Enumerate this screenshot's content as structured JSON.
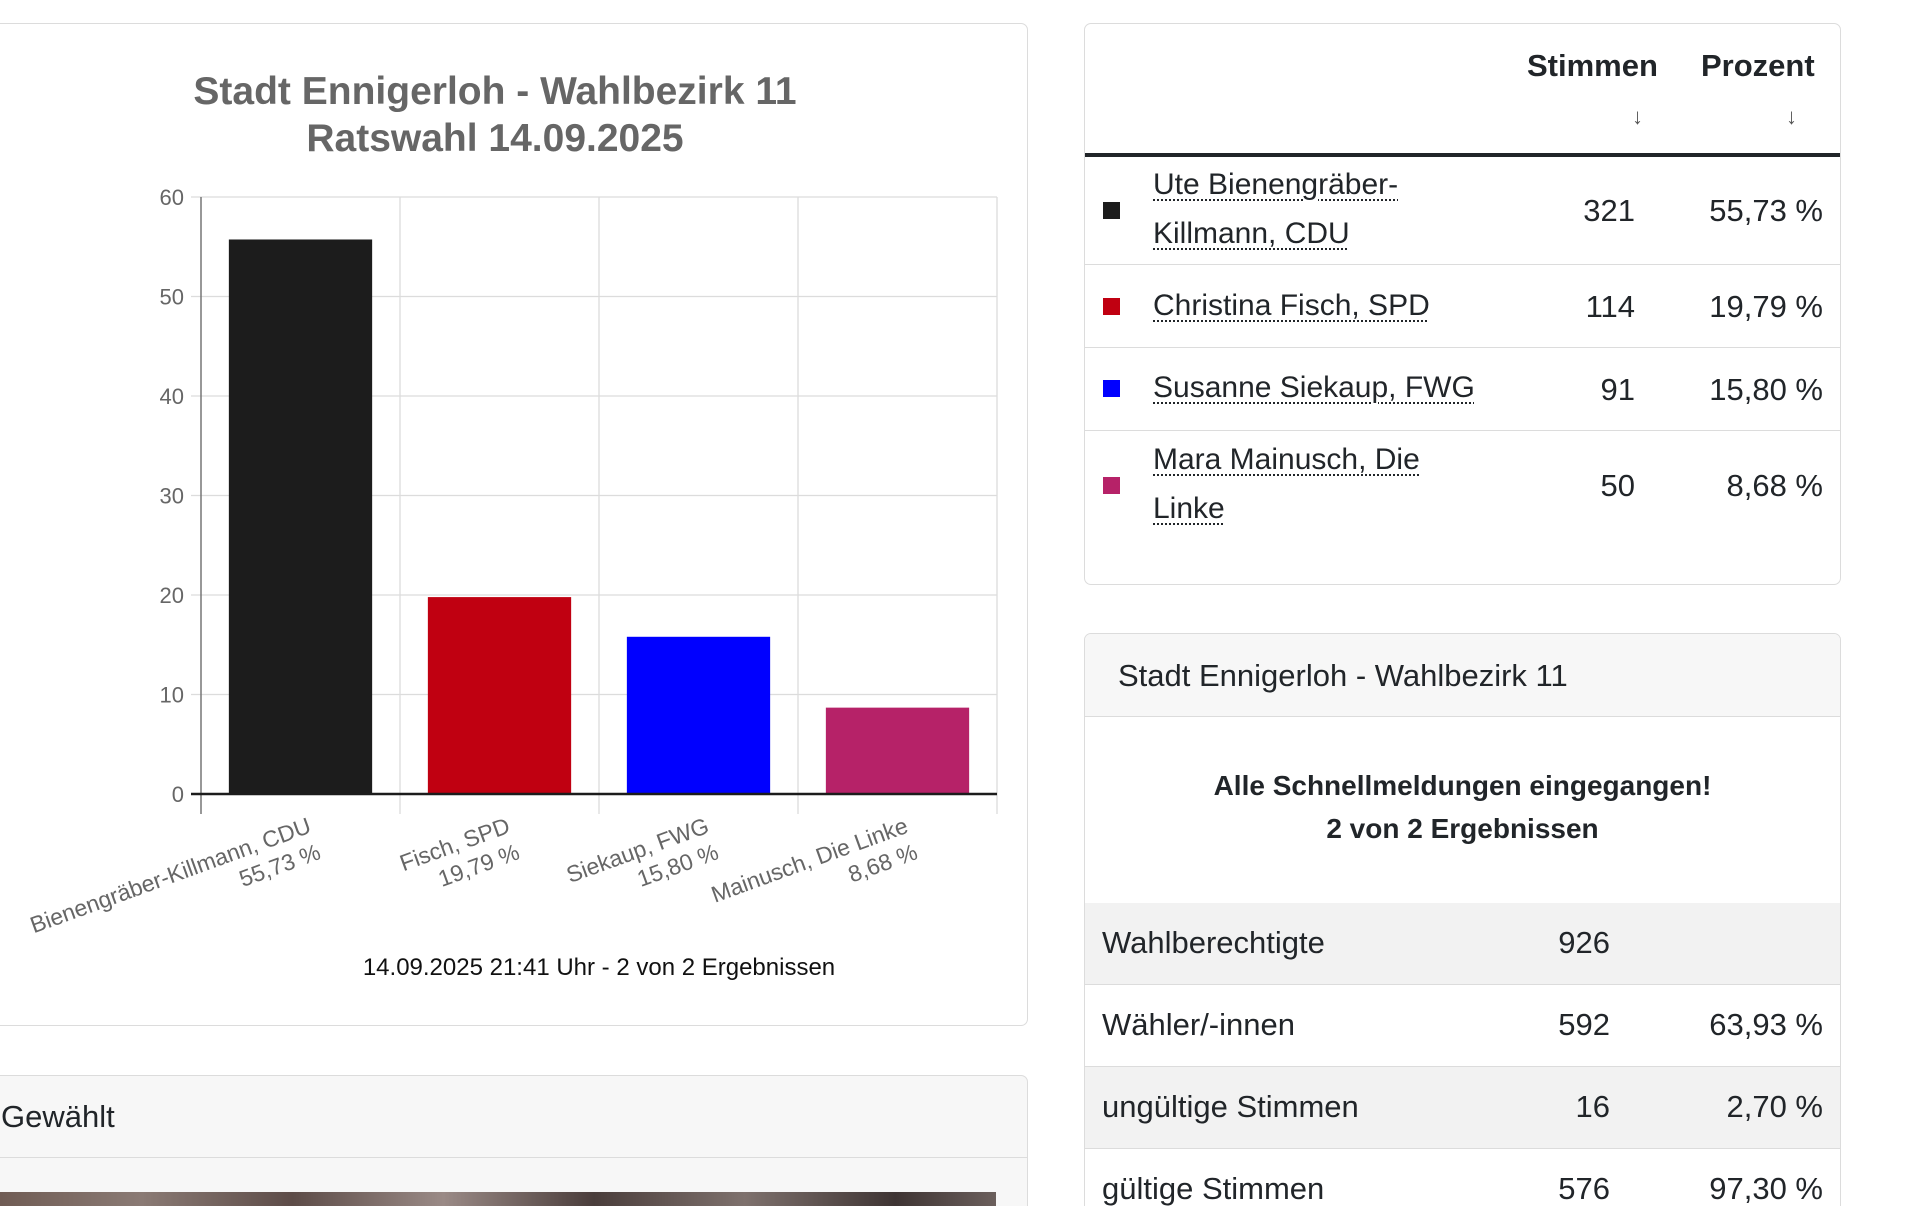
{
  "chart_data": {
    "type": "bar",
    "title": "Stadt Ennigerloh - Wahlbezirk 11",
    "subtitle": "Ratswahl 14.09.2025",
    "categories": [
      "Bienengräber-Killmann, CDU",
      "Fisch, SPD",
      "Siekaup, FWG",
      "Mainusch, Die Linke"
    ],
    "category_values_text": [
      "55,73 %",
      "19,79 %",
      "15,80 %",
      "8,68 %"
    ],
    "values": [
      55.73,
      19.79,
      15.8,
      8.68
    ],
    "colors": [
      "#1c1c1c",
      "#c00011",
      "#0000ff",
      "#b62268"
    ],
    "ylim": [
      0,
      60
    ],
    "yticks": [
      0,
      10,
      20,
      30,
      40,
      50,
      60
    ],
    "grid": true,
    "legend": "none",
    "footer": "14.09.2025 21:41 Uhr - 2 von 2 Ergebnissen"
  },
  "gewaehlt": {
    "title": "Gewählt"
  },
  "results": {
    "headers": {
      "stimmen": "Stimmen",
      "prozent": "Prozent",
      "sort_arrow": "↓"
    },
    "rows": [
      {
        "line1": "Ute Bienengräber-",
        "line2": "Killmann, CDU",
        "stimmen": "321",
        "prozent": "55,73 %",
        "color": "#1c1c1c"
      },
      {
        "line1": "Christina Fisch, SPD",
        "line2": "",
        "stimmen": "114",
        "prozent": "19,79 %",
        "color": "#c00011"
      },
      {
        "line1": "Susanne Siekaup, FWG",
        "line2": "",
        "stimmen": "91",
        "prozent": "15,80 %",
        "color": "#0000ff"
      },
      {
        "line1": "Mara Mainusch, Die",
        "line2": "Linke",
        "stimmen": "50",
        "prozent": "8,68 %",
        "color": "#b62268"
      }
    ]
  },
  "summary": {
    "title": "Stadt Ennigerloh - Wahlbezirk 11",
    "status_line1": "Alle Schnellmeldungen eingegangen!",
    "status_line2": "2 von 2 Ergebnissen",
    "rows": [
      {
        "label": "Wahlberechtigte",
        "value": "926",
        "pct": ""
      },
      {
        "label": "Wähler/-innen",
        "value": "592",
        "pct": "63,93 %"
      },
      {
        "label": "ungültige Stimmen",
        "value": "16",
        "pct": "2,70 %"
      },
      {
        "label": "gültige Stimmen",
        "value": "576",
        "pct": "97,30 %"
      }
    ]
  }
}
